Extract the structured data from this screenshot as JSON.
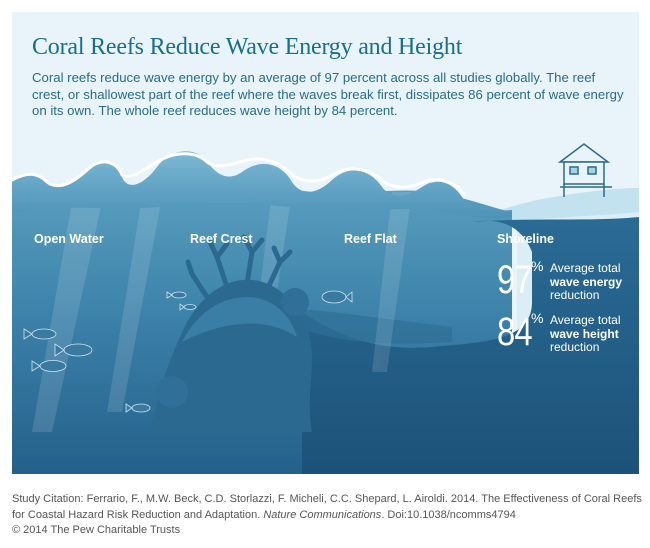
{
  "title": "Coral Reefs Reduce Wave Energy and Height",
  "intro": "Coral reefs reduce wave energy by an average of 97 percent across all studies globally. The reef crest, or shallowest part of the reef where the waves break first, dissipates 86 percent of wave energy on its own. The whole reef reduces wave height by 84 percent.",
  "zones": {
    "open_water": "Open Water",
    "reef_crest": "Reef Crest",
    "reef_flat": "Reef Flat",
    "shoreline": "Shoreline"
  },
  "stats": [
    {
      "number": "97",
      "percent": "%",
      "line1": "Average total",
      "line2": "wave energy",
      "line3": "reduction"
    },
    {
      "number": "84",
      "percent": "%",
      "line1": "Average total",
      "line2": "wave height",
      "line3": "reduction"
    }
  ],
  "citation": {
    "prefix": "Study Citation: Ferrario, F., M.W. Beck, C.D. Storlazzi, F. Micheli, C.C. Shepard, L. Airoldi. 2014. The Effectiveness of Coral Reefs for Coastal Hazard Risk Reduction and Adaptation. ",
    "journal": "Nature Communications",
    "suffix": ". Doi:10.1038/ncomms4794",
    "copyright": "© 2014 The Pew Charitable Trusts"
  },
  "colors": {
    "sky": "#e8f4f9",
    "title": "#1a6e8a",
    "shallow_water": "#4f93b5",
    "deep_water": "#1f5a82",
    "reef": "#2b6990",
    "shore": "#dbeef6",
    "foam": "#ffffff"
  }
}
